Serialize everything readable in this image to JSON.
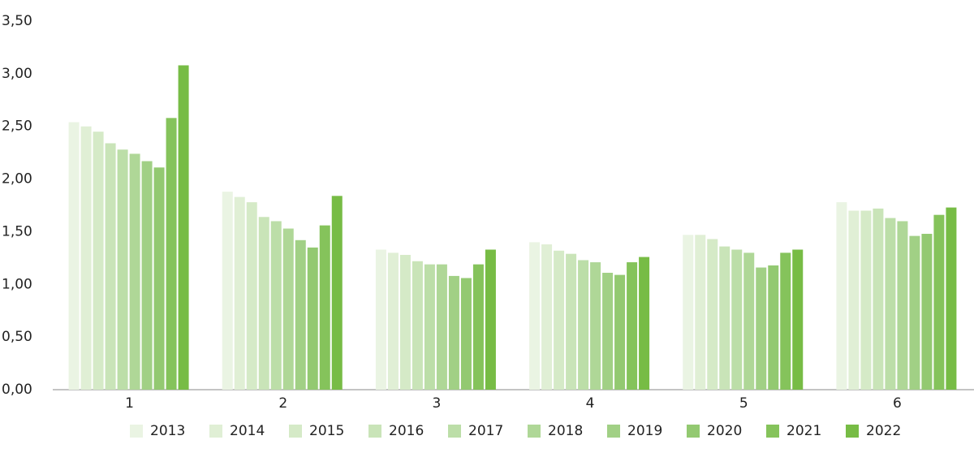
{
  "chart_data": {
    "type": "bar",
    "categories": [
      "1",
      "2",
      "3",
      "4",
      "5",
      "6"
    ],
    "series": [
      {
        "name": "2013",
        "color": "#eaf4e3",
        "values": [
          2.54,
          1.88,
          1.33,
          1.4,
          1.47,
          1.78
        ]
      },
      {
        "name": "2014",
        "color": "#e0efd5",
        "values": [
          2.5,
          1.83,
          1.3,
          1.38,
          1.47,
          1.7
        ]
      },
      {
        "name": "2015",
        "color": "#d5eac7",
        "values": [
          2.45,
          1.78,
          1.28,
          1.32,
          1.43,
          1.7
        ]
      },
      {
        "name": "2016",
        "color": "#c9e4b8",
        "values": [
          2.34,
          1.64,
          1.22,
          1.29,
          1.36,
          1.72
        ]
      },
      {
        "name": "2017",
        "color": "#bcdea8",
        "values": [
          2.28,
          1.6,
          1.19,
          1.23,
          1.33,
          1.63
        ]
      },
      {
        "name": "2018",
        "color": "#afd797",
        "values": [
          2.24,
          1.53,
          1.19,
          1.21,
          1.3,
          1.6
        ]
      },
      {
        "name": "2019",
        "color": "#a1d085",
        "values": [
          2.17,
          1.42,
          1.08,
          1.11,
          1.16,
          1.46
        ]
      },
      {
        "name": "2020",
        "color": "#93c971",
        "values": [
          2.11,
          1.35,
          1.06,
          1.09,
          1.18,
          1.48
        ]
      },
      {
        "name": "2021",
        "color": "#85c35b",
        "values": [
          2.58,
          1.56,
          1.19,
          1.21,
          1.3,
          1.66
        ]
      },
      {
        "name": "2022",
        "color": "#77bc45",
        "values": [
          3.08,
          1.84,
          1.33,
          1.26,
          1.33,
          1.73
        ]
      }
    ],
    "ylim": [
      0,
      3.5
    ],
    "yticks": [
      {
        "value": 0,
        "label": "0,00"
      },
      {
        "value": 0.5,
        "label": "0,50"
      },
      {
        "value": 1,
        "label": "1,00"
      },
      {
        "value": 1.5,
        "label": "1,50"
      },
      {
        "value": 2,
        "label": "2,00"
      },
      {
        "value": 2.5,
        "label": "2,50"
      },
      {
        "value": 3,
        "label": "3,00"
      },
      {
        "value": 3.5,
        "label": "3,50"
      }
    ],
    "grid": false,
    "legend": "bottom"
  }
}
